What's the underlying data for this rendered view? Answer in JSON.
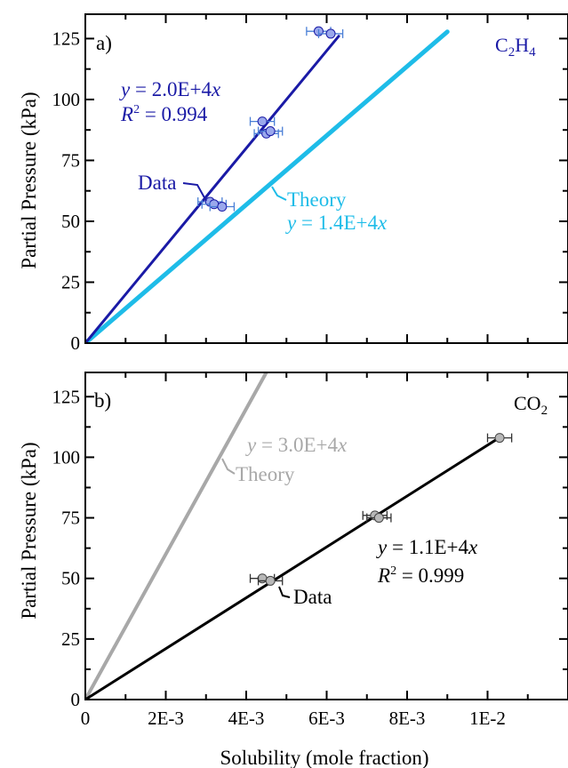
{
  "colors": {
    "c2h4_exp": "#1a1aa6",
    "c2h4_theory": "#1ebce8",
    "c2h4_marker_fill": "#9aa8ec",
    "c2h4_errorbar": "#4a7fd6",
    "co2_exp": "#000000",
    "co2_theory": "#a8a8a8",
    "co2_marker_fill": "#b8b8b8",
    "axis": "#000000"
  },
  "chart_data": [
    {
      "type": "scatter",
      "panel_label": "a)",
      "species": {
        "main": "C",
        "sub1": "2",
        "mid": "H",
        "sub2": "4"
      },
      "xlabel": "",
      "ylabel": "Partial Pressure (kPa)",
      "xlim": [
        0,
        0.012
      ],
      "ylim": [
        0,
        135
      ],
      "x_ticks": [
        0,
        0.002,
        0.004,
        0.006,
        0.008,
        0.01
      ],
      "y_ticks": [
        0,
        25,
        50,
        75,
        100,
        125
      ],
      "y_tick_labels": [
        "0",
        "25",
        "50",
        "75",
        "100",
        "125"
      ],
      "grid": false,
      "series": [
        {
          "name": "Data",
          "x": [
            0.0031,
            0.0032,
            0.0034,
            0.0044,
            0.0045,
            0.0046,
            0.0058,
            0.0061
          ],
          "y": [
            58,
            57,
            56,
            91,
            86,
            87,
            128,
            127
          ],
          "xerr": 0.0003
        }
      ],
      "fits": [
        {
          "name": "Data",
          "slope": 20000,
          "x_end": 0.0063,
          "equation": {
            "lhs": "y",
            "mid": " = 2.0E+4",
            "var": "x"
          },
          "r2_label": "R",
          "r2_value": " = 0.994"
        },
        {
          "name": "Theory",
          "slope": 14200,
          "x_end": 0.009,
          "equation": {
            "lhs": "y",
            "mid": " = 1.4E+4",
            "var": "x"
          }
        }
      ],
      "annotations": {
        "data": "Data",
        "theory": "Theory"
      }
    },
    {
      "type": "scatter",
      "panel_label": "b)",
      "species": {
        "main": "CO",
        "sub1": "2"
      },
      "xlabel": "Solubility (mole fraction)",
      "ylabel": "Partial Pressure (kPa)",
      "xlim": [
        0,
        0.012
      ],
      "ylim": [
        0,
        135
      ],
      "x_ticks": [
        0,
        0.002,
        0.004,
        0.006,
        0.008,
        0.01
      ],
      "x_tick_labels": [
        "0",
        "2E-3",
        "4E-3",
        "6E-3",
        "8E-3",
        "1E-2"
      ],
      "y_ticks": [
        0,
        25,
        50,
        75,
        100,
        125
      ],
      "y_tick_labels": [
        "0",
        "25",
        "50",
        "75",
        "100",
        "125"
      ],
      "grid": false,
      "series": [
        {
          "name": "Data",
          "x": [
            0.0044,
            0.0046,
            0.0072,
            0.0073,
            0.0103
          ],
          "y": [
            50,
            49,
            76,
            75,
            108
          ],
          "xerr": 0.0003
        }
      ],
      "fits": [
        {
          "name": "Data",
          "slope": 10500,
          "x_end": 0.0103,
          "equation": {
            "lhs": "y",
            "mid": " = 1.1E+4",
            "var": "x"
          },
          "r2_label": "R",
          "r2_value": " = 0.999"
        },
        {
          "name": "Theory",
          "slope": 30000,
          "x_end": 0.0045,
          "equation": {
            "lhs": "y",
            "mid": " = 3.0E+4",
            "var": "x"
          }
        }
      ],
      "annotations": {
        "data": "Data",
        "theory": "Theory"
      }
    }
  ]
}
